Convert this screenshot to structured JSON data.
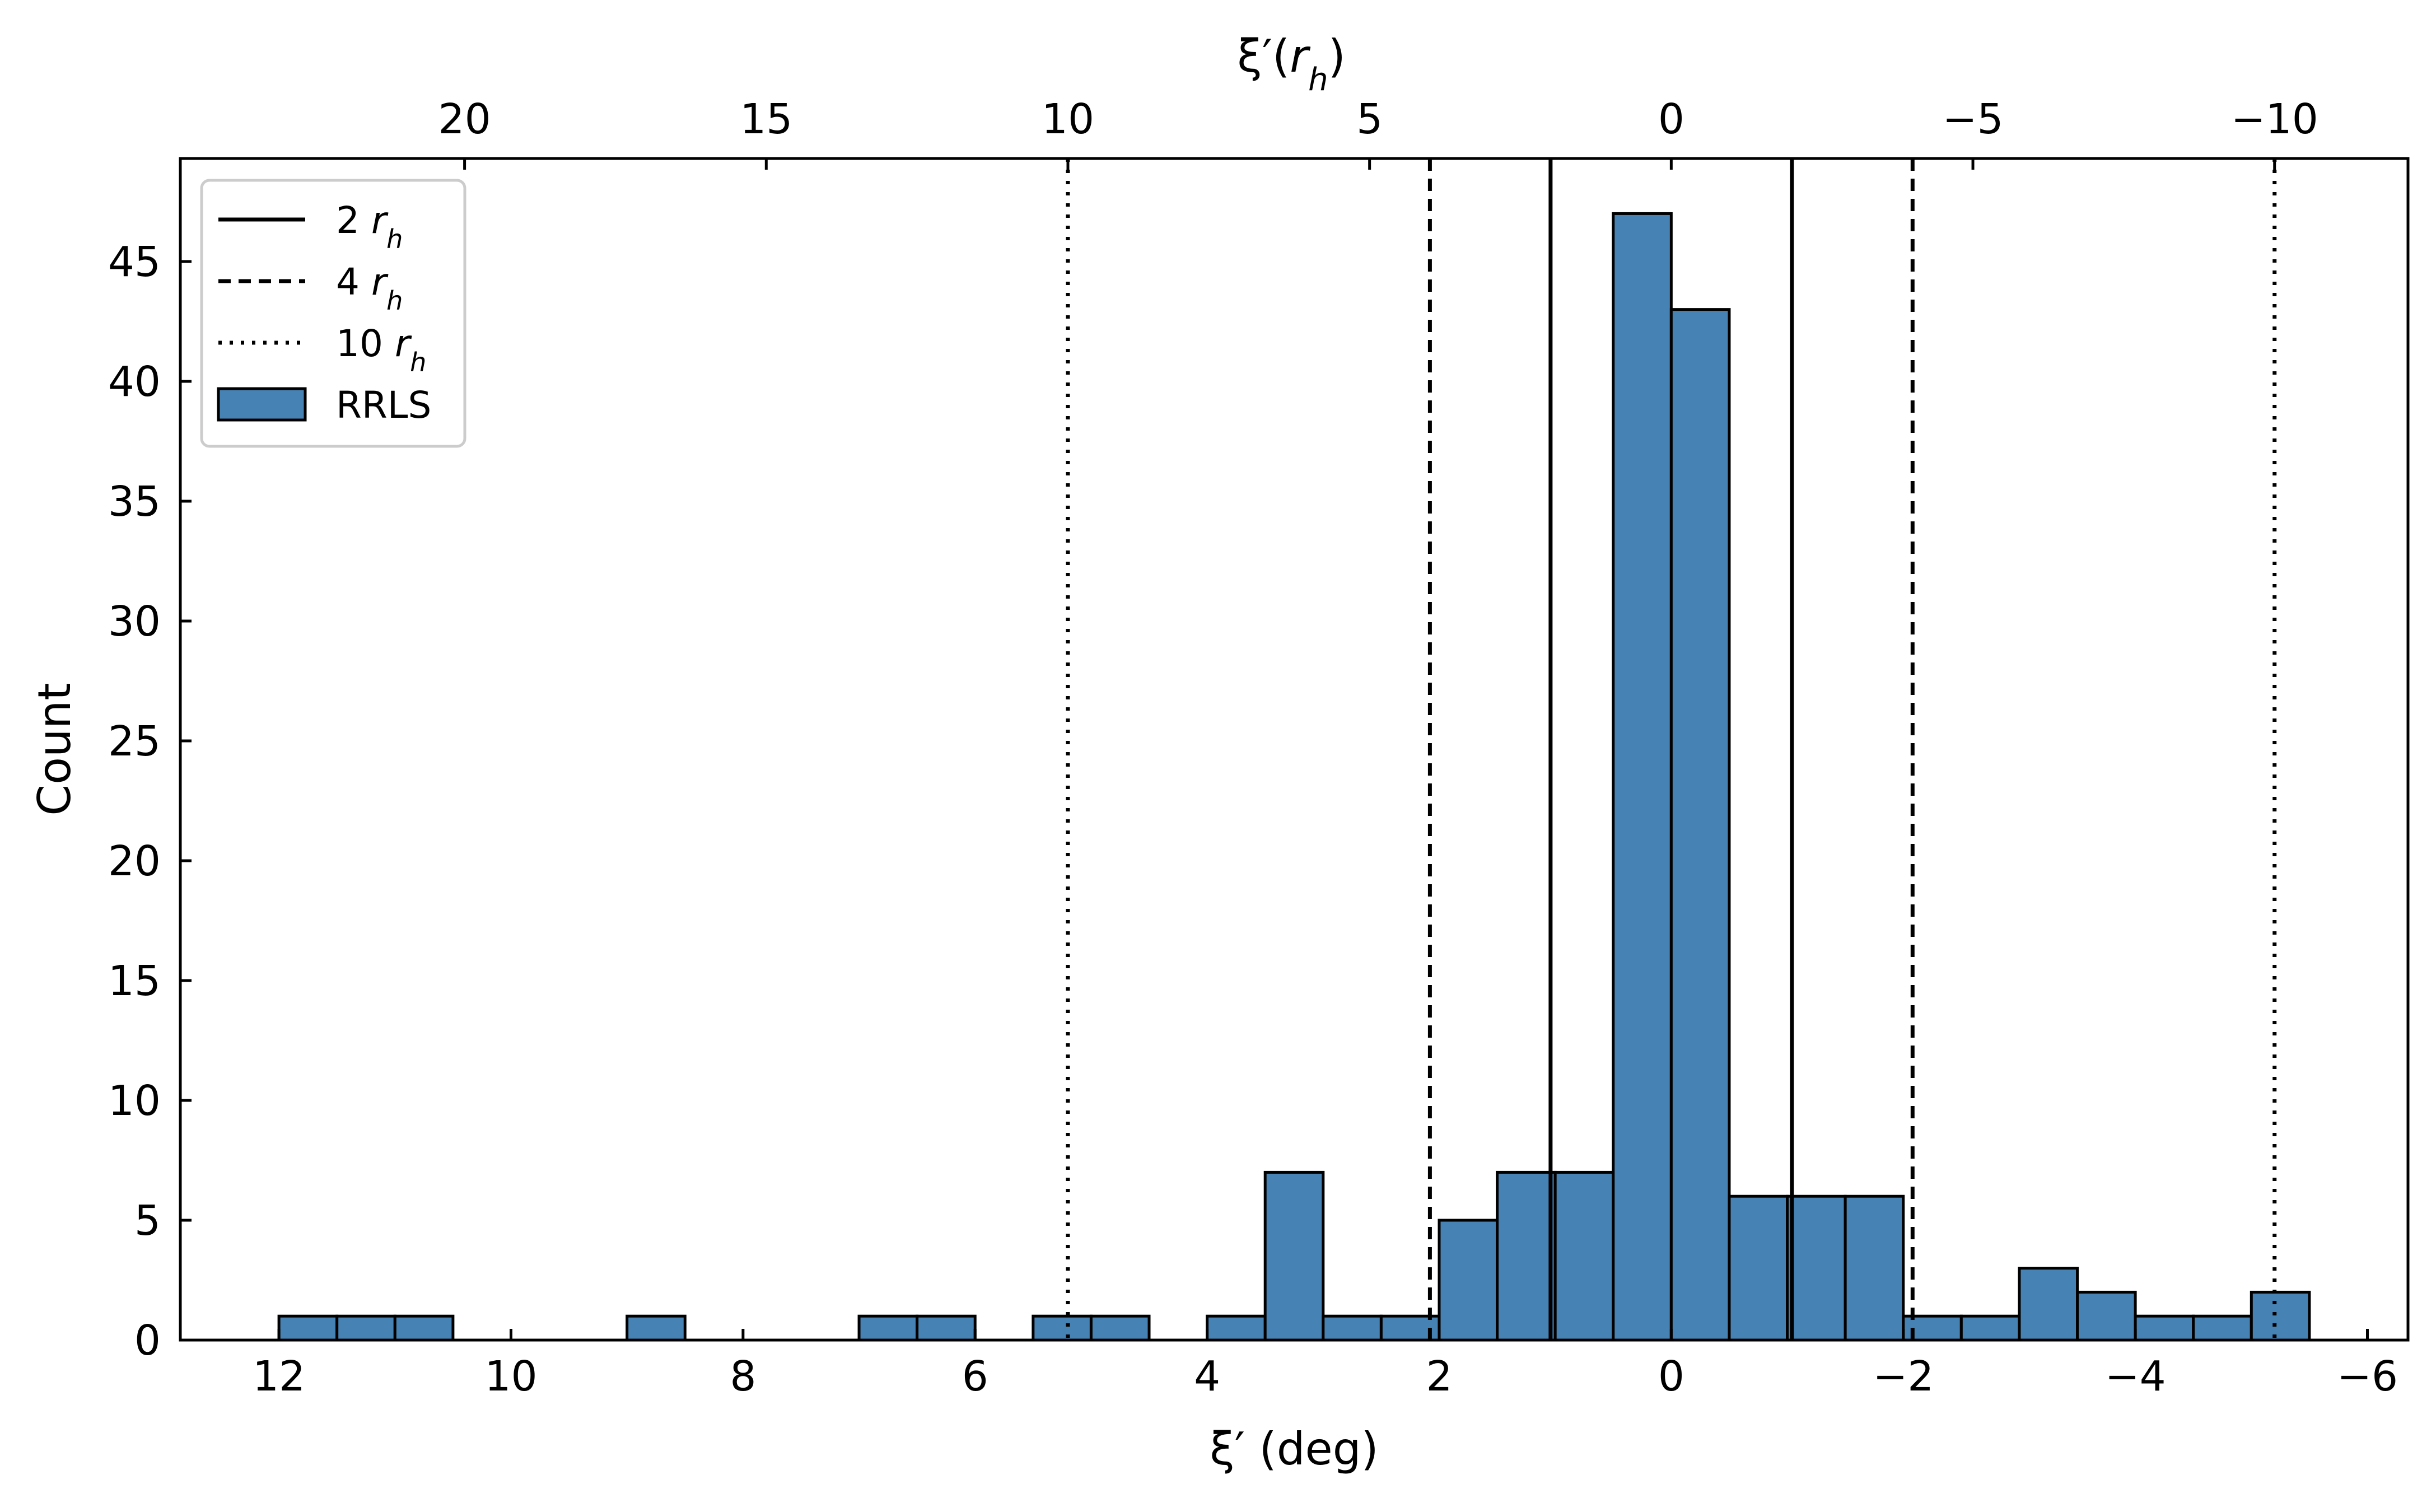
{
  "chart_data": {
    "type": "bar",
    "title": "",
    "xlabel": "ξ′ (deg)",
    "ylabel": "Count",
    "top_xlabel": "ξ′(r_h)",
    "xlim": [
      12.85,
      -6.35
    ],
    "ylim": [
      0,
      49.3
    ],
    "xticks": [
      12,
      10,
      8,
      6,
      4,
      2,
      0,
      -2,
      -4,
      -6
    ],
    "xtick_labels": [
      "12",
      "10",
      "8",
      "6",
      "4",
      "2",
      "0",
      "−2",
      "−4",
      "−6"
    ],
    "yticks": [
      0,
      5,
      10,
      15,
      20,
      25,
      30,
      35,
      40,
      45
    ],
    "ytick_labels": [
      "0",
      "5",
      "10",
      "15",
      "20",
      "25",
      "30",
      "35",
      "40",
      "45"
    ],
    "top_xticks_rh": [
      20,
      15,
      10,
      5,
      0,
      -5,
      -10
    ],
    "top_xtick_labels": [
      "20",
      "15",
      "10",
      "5",
      "0",
      "−5",
      "−10"
    ],
    "deg_per_rh": 0.52,
    "bar_color": "#4682b4",
    "edge_color": "#000000",
    "bin_width_deg": 0.5,
    "bin_edges_left": [
      12.0,
      11.5,
      11.0,
      9.0,
      7.0,
      6.5,
      5.5,
      5.0,
      4.0,
      3.5,
      3.0,
      2.5,
      2.0,
      1.5,
      1.0,
      0.5,
      0.0,
      -0.5,
      -1.0,
      -1.5,
      -2.0,
      -2.5,
      -3.0,
      -3.5,
      -4.0,
      -4.5,
      -5.0
    ],
    "values": [
      1,
      1,
      1,
      1,
      1,
      1,
      1,
      1,
      1,
      7,
      1,
      1,
      5,
      7,
      7,
      47,
      43,
      6,
      6,
      6,
      1,
      1,
      3,
      2,
      1,
      1,
      2
    ],
    "vlines": [
      {
        "x": 1.04,
        "style": "solid"
      },
      {
        "x": -1.04,
        "style": "solid"
      },
      {
        "x": 2.08,
        "style": "dashed"
      },
      {
        "x": -2.08,
        "style": "dashed"
      },
      {
        "x": 5.2,
        "style": "dotted"
      },
      {
        "x": -5.2,
        "style": "dotted"
      }
    ],
    "legend": {
      "position": "upper-left",
      "entries": [
        {
          "label": "2 r_h",
          "style": "solid"
        },
        {
          "label": "4 r_h",
          "style": "dashed"
        },
        {
          "label": "10 r_h",
          "style": "dotted"
        },
        {
          "label": "RRLS",
          "style": "patch"
        }
      ]
    },
    "grid": false
  }
}
